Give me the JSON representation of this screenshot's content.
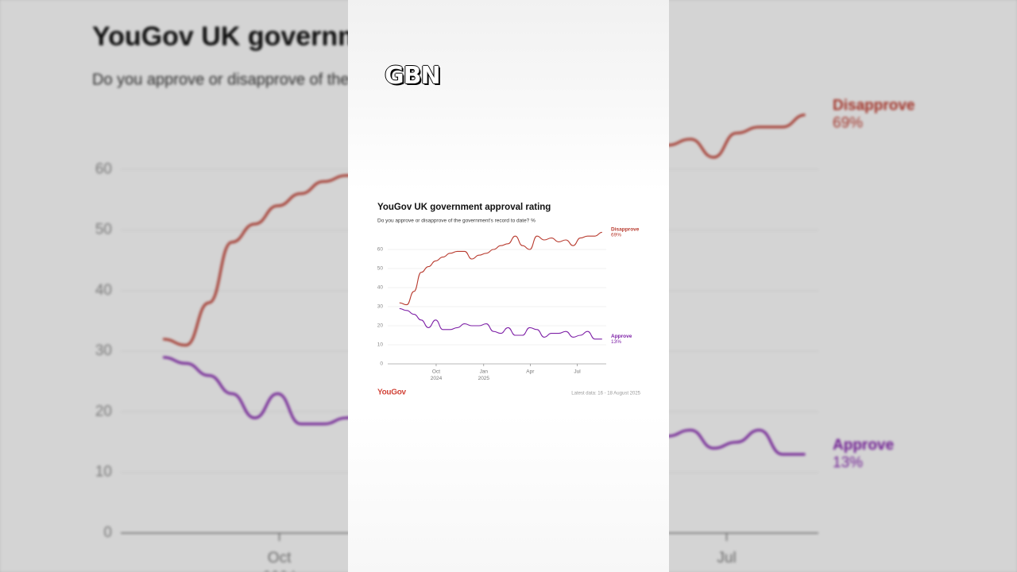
{
  "logo": "GBN",
  "chart_data": {
    "type": "line",
    "title": "YouGov UK government approval rating",
    "subtitle": "Do you approve or disapprove of the government's record to date? %",
    "source": "YouGov",
    "note": "Latest data: 16 - 18 August 2025",
    "x": [
      "2024-07-22",
      "2024-08-05",
      "2024-08-19",
      "2024-09-02",
      "2024-09-16",
      "2024-09-30",
      "2024-10-14",
      "2024-10-28",
      "2024-11-11",
      "2024-11-25",
      "2024-12-09",
      "2024-12-23",
      "2025-01-06",
      "2025-01-20",
      "2025-02-03",
      "2025-02-17",
      "2025-03-03",
      "2025-03-17",
      "2025-03-31",
      "2025-04-14",
      "2025-04-28",
      "2025-05-12",
      "2025-05-26",
      "2025-06-09",
      "2025-06-23",
      "2025-07-07",
      "2025-07-21",
      "2025-08-04",
      "2025-08-18"
    ],
    "series": [
      {
        "name": "Disapprove",
        "color": "#b83a2e",
        "values": [
          32,
          31,
          38,
          48,
          51,
          54,
          56,
          58,
          59,
          59,
          55,
          57,
          58,
          60,
          62,
          63,
          67,
          62,
          60,
          67,
          65,
          66,
          64,
          65,
          62,
          66,
          67,
          67,
          69
        ],
        "value_labels": [
          null,
          null,
          null,
          null,
          null,
          null,
          null,
          null,
          null,
          null,
          null,
          null,
          null,
          null,
          null,
          null,
          null,
          null,
          null,
          null,
          null,
          null,
          null,
          null,
          null,
          null,
          null,
          null,
          "69%"
        ]
      },
      {
        "name": "Approve",
        "color": "#7d1fa6",
        "values": [
          29,
          28,
          26,
          23,
          19,
          23,
          18,
          18,
          19,
          21,
          20,
          20,
          21,
          17,
          16,
          19,
          15,
          15,
          19,
          18,
          14,
          16,
          16,
          17,
          14,
          15,
          17,
          13,
          13
        ],
        "value_labels": [
          null,
          null,
          null,
          null,
          null,
          null,
          null,
          null,
          null,
          null,
          null,
          null,
          null,
          null,
          null,
          null,
          null,
          null,
          null,
          null,
          null,
          null,
          null,
          null,
          null,
          null,
          null,
          null,
          "13%"
        ]
      }
    ],
    "xlim": [
      "2024-06-17",
      "2025-08-26"
    ],
    "xticks": [
      {
        "value": "2024-10-01",
        "label": [
          "Oct",
          "2024"
        ]
      },
      {
        "value": "2025-01-01",
        "label": [
          "Jan",
          "2025"
        ]
      },
      {
        "value": "2025-04-01",
        "label": [
          "Apr"
        ]
      },
      {
        "value": "2025-07-01",
        "label": [
          "Jul"
        ]
      }
    ],
    "ylim": [
      0,
      70
    ],
    "yticks": [
      0,
      10,
      20,
      30,
      40,
      50,
      60
    ],
    "grid": true
  }
}
